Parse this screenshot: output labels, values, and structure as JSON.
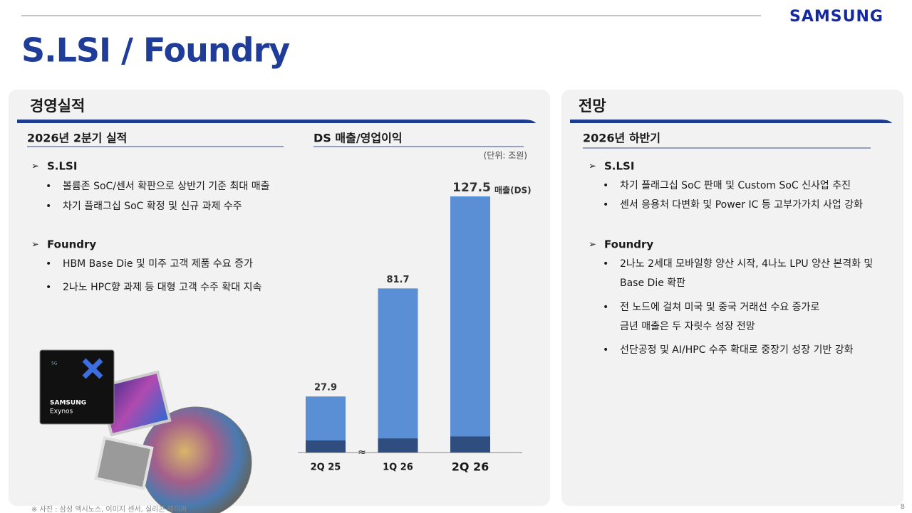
{
  "header": {
    "brand": "SAMSUNG",
    "title": "S.LSI / Foundry"
  },
  "left": {
    "heading": "경영실적",
    "subheading": "2026년 2분기 실적",
    "sections": [
      {
        "heading": "S.LSI",
        "items": [
          [
            "볼륨존 SoC/센서 확판으로 상반기 기준 최대 매출"
          ],
          [
            "차기 플래그십 SoC 확정 및 신규 과제 수주"
          ]
        ]
      },
      {
        "heading": "Foundry",
        "items": [
          [
            "HBM Base Die 및 미주 고객 제품 수요 증가"
          ],
          [
            "2나노 HPC향 과제 등 대형 고객 수주 확대 지속"
          ]
        ]
      }
    ]
  },
  "right": {
    "heading": "전망",
    "subheading": "2026년 하반기",
    "sections": [
      {
        "heading": "S.LSI",
        "items": [
          [
            "차기 플래그십 SoC 판매 및 Custom SoC 신사업 추진"
          ],
          [
            "센서 응용처 다변화 및 Power IC 등 고부가가치 사업 강화"
          ]
        ]
      },
      {
        "heading": "Foundry",
        "items": [
          [
            "2나노 2세대 모바일향 양산 시작, 4나노 LPU 양산 본격화 및",
            "Base Die 확판"
          ],
          [
            "전 노드에 걸쳐 미국 및 중국 거래선 수요 증가로",
            "금년 매출은 두 자릿수 성장 전망"
          ],
          [
            "선단공정 및 AI/HPC 수주 확대로 중장기 성장  기반 강화"
          ]
        ]
      }
    ]
  },
  "image_text": {
    "badge": "5G",
    "brand": "SAMSUNG",
    "chip": "Exynos"
  },
  "chart_data": {
    "type": "bar",
    "title": "DS 매출/영업이익",
    "unit": "(단위: 조원)",
    "categories": [
      "2Q 25",
      "1Q 26",
      "2Q 26"
    ],
    "series": [
      {
        "name": "매출(DS)",
        "color": "#5a8fd6",
        "values": [
          27.9,
          81.7,
          127.5
        ]
      },
      {
        "color": "#2f4d7e",
        "values": [
          6,
          7,
          8
        ]
      }
    ],
    "ylim": [
      0,
      130
    ]
  },
  "footnote": "※ 사진 : 삼성 엑시노스, 이미지 센서, 실리콘 웨이퍼",
  "page_number": "8"
}
